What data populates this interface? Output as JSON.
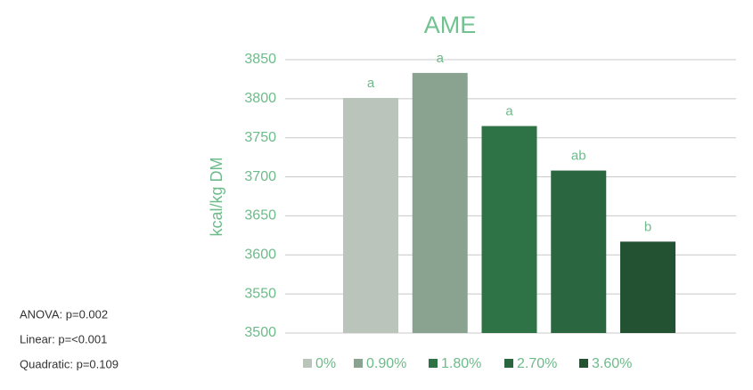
{
  "chart_data": {
    "type": "bar",
    "title": "AME",
    "y_label": "kcal/kg DM",
    "series": [
      {
        "name": "0%",
        "color": "#bac4bb",
        "values": [
          3801
        ],
        "significance": "a"
      },
      {
        "name": "0.90%",
        "color": "#8aa390",
        "values": [
          3833
        ],
        "significance": "a"
      },
      {
        "name": "1.80%",
        "color": "#2e7345",
        "values": [
          3765
        ],
        "significance": "a"
      },
      {
        "name": "2.70%",
        "color": "#2a6640",
        "values": [
          3708
        ],
        "significance": "ab"
      },
      {
        "name": "3.60%",
        "color": "#225232",
        "values": [
          3617
        ],
        "significance": "b"
      }
    ],
    "ylim": [
      3500,
      3850
    ],
    "yticks": [
      3500,
      3550,
      3600,
      3650,
      3700,
      3750,
      3800,
      3850
    ],
    "grid": true,
    "legend": "bottom",
    "notes": [
      "ANOVA: p=0.002",
      "Linear: p=<0.001",
      "Quadratic: p=0.109"
    ]
  }
}
